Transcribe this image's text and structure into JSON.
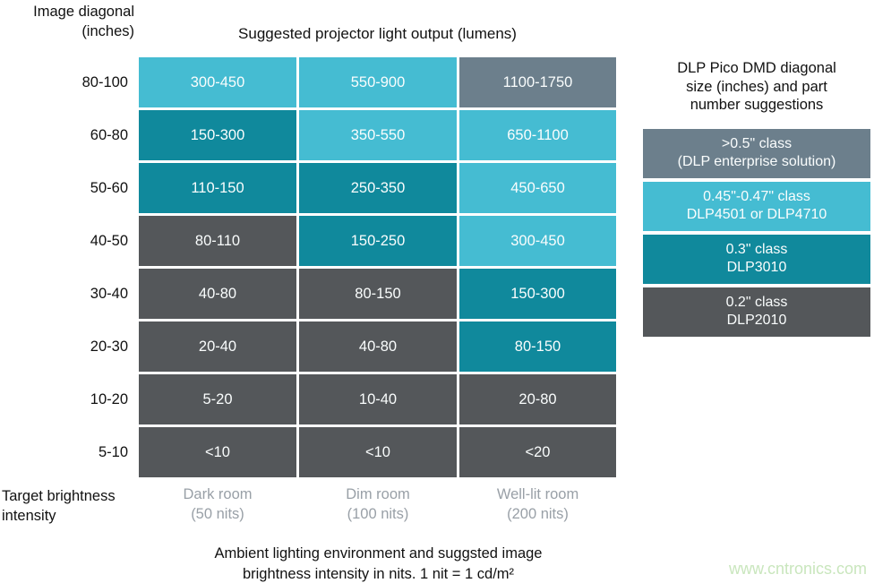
{
  "palette": {
    "cyan": "#45bcd2",
    "teal": "#10899c",
    "slate": "#6c7f8c",
    "dark": "#54575a",
    "footer_gray": "#99a0a7",
    "watermark_green": "#c9e6bd"
  },
  "header": {
    "row_axis_label": "Image diagonal\n(inches)",
    "table_title": "Suggested projector light output (lumens)"
  },
  "matrix": {
    "rows": [
      {
        "label": "80-100",
        "cells": [
          {
            "value": "300-450",
            "color": "#45bcd2"
          },
          {
            "value": "550-900",
            "color": "#45bcd2"
          },
          {
            "value": "1100-1750",
            "color": "#6c7f8c"
          }
        ]
      },
      {
        "label": "60-80",
        "cells": [
          {
            "value": "150-300",
            "color": "#10899c"
          },
          {
            "value": "350-550",
            "color": "#45bcd2"
          },
          {
            "value": "650-1100",
            "color": "#45bcd2"
          }
        ]
      },
      {
        "label": "50-60",
        "cells": [
          {
            "value": "110-150",
            "color": "#10899c"
          },
          {
            "value": "250-350",
            "color": "#10899c"
          },
          {
            "value": "450-650",
            "color": "#45bcd2"
          }
        ]
      },
      {
        "label": "40-50",
        "cells": [
          {
            "value": "80-110",
            "color": "#54575a"
          },
          {
            "value": "150-250",
            "color": "#10899c"
          },
          {
            "value": "300-450",
            "color": "#45bcd2"
          }
        ]
      },
      {
        "label": "30-40",
        "cells": [
          {
            "value": "40-80",
            "color": "#54575a"
          },
          {
            "value": "80-150",
            "color": "#54575a"
          },
          {
            "value": "150-300",
            "color": "#10899c"
          }
        ]
      },
      {
        "label": "20-30",
        "cells": [
          {
            "value": "20-40",
            "color": "#54575a"
          },
          {
            "value": "40-80",
            "color": "#54575a"
          },
          {
            "value": "80-150",
            "color": "#10899c"
          }
        ]
      },
      {
        "label": "10-20",
        "cells": [
          {
            "value": "5-20",
            "color": "#54575a"
          },
          {
            "value": "10-40",
            "color": "#54575a"
          },
          {
            "value": "20-80",
            "color": "#54575a"
          }
        ]
      },
      {
        "label": "5-10",
        "cells": [
          {
            "value": "<10",
            "color": "#54575a"
          },
          {
            "value": "<10",
            "color": "#54575a"
          },
          {
            "value": "<20",
            "color": "#54575a"
          }
        ]
      }
    ]
  },
  "footer": {
    "columns": [
      "Dark room\n(50 nits)",
      "Dim room\n(100 nits)",
      "Well-lit room\n(200 nits)"
    ],
    "col_axis_label": "Target brightness\nintensity",
    "caption": "Ambient lighting environment and suggsted image\nbrightness intensity in nits. 1 nit = 1 cd/m²"
  },
  "legend": {
    "title": "DLP Pico DMD diagonal\nsize (inches) and part\nnumber suggestions",
    "items": [
      {
        "label": ">0.5\" class\n(DLP enterprise solution)",
        "color": "#6c7f8c"
      },
      {
        "label": "0.45\"-0.47\" class\nDLP4501 or DLP4710",
        "color": "#45bcd2"
      },
      {
        "label": "0.3\" class\nDLP3010",
        "color": "#10899c"
      },
      {
        "label": "0.2\" class\nDLP2010",
        "color": "#54575a"
      }
    ]
  },
  "watermark": "www.cntronics.com",
  "chart_data": {
    "type": "heatmap",
    "title": "Suggested projector light output (lumens)",
    "row_axis_label": "Image diagonal (inches)",
    "col_axis_label": "Target brightness intensity",
    "rows": [
      "80-100",
      "60-80",
      "50-60",
      "40-50",
      "30-40",
      "20-30",
      "10-20",
      "5-10"
    ],
    "columns": [
      "Dark room (50 nits)",
      "Dim room (100 nits)",
      "Well-lit room (200 nits)"
    ],
    "values": [
      [
        "300-450",
        "550-900",
        "1100-1750"
      ],
      [
        "150-300",
        "350-550",
        "650-1100"
      ],
      [
        "110-150",
        "250-350",
        "450-650"
      ],
      [
        "80-110",
        "150-250",
        "300-450"
      ],
      [
        "40-80",
        "80-150",
        "150-300"
      ],
      [
        "20-40",
        "40-80",
        "80-150"
      ],
      [
        "5-20",
        "10-40",
        "20-80"
      ],
      [
        "<10",
        "<10",
        "<20"
      ]
    ],
    "cell_dmd_class": [
      [
        "0.45\"-0.47\"",
        "0.45\"-0.47\"",
        ">0.5\""
      ],
      [
        "0.3\"",
        "0.45\"-0.47\"",
        "0.45\"-0.47\""
      ],
      [
        "0.3\"",
        "0.3\"",
        "0.45\"-0.47\""
      ],
      [
        "0.2\"",
        "0.3\"",
        "0.45\"-0.47\""
      ],
      [
        "0.2\"",
        "0.2\"",
        "0.3\""
      ],
      [
        "0.2\"",
        "0.2\"",
        "0.3\""
      ],
      [
        "0.2\"",
        "0.2\"",
        "0.2\""
      ],
      [
        "0.2\"",
        "0.2\"",
        "0.2\""
      ]
    ],
    "legend_title": "DLP Pico DMD diagonal size (inches) and part number suggestions",
    "legend_entries": [
      {
        "label": ">0.5\" class (DLP enterprise solution)",
        "color": "#6c7f8c"
      },
      {
        "label": "0.45\"-0.47\" class DLP4501 or DLP4710",
        "color": "#45bcd2"
      },
      {
        "label": "0.3\" class DLP3010",
        "color": "#10899c"
      },
      {
        "label": "0.2\" class DLP2010",
        "color": "#54575a"
      }
    ],
    "footnote": "Ambient lighting environment and suggsted image brightness intensity in nits. 1 nit = 1 cd/m²",
    "legend_position": "right",
    "grid": false
  }
}
